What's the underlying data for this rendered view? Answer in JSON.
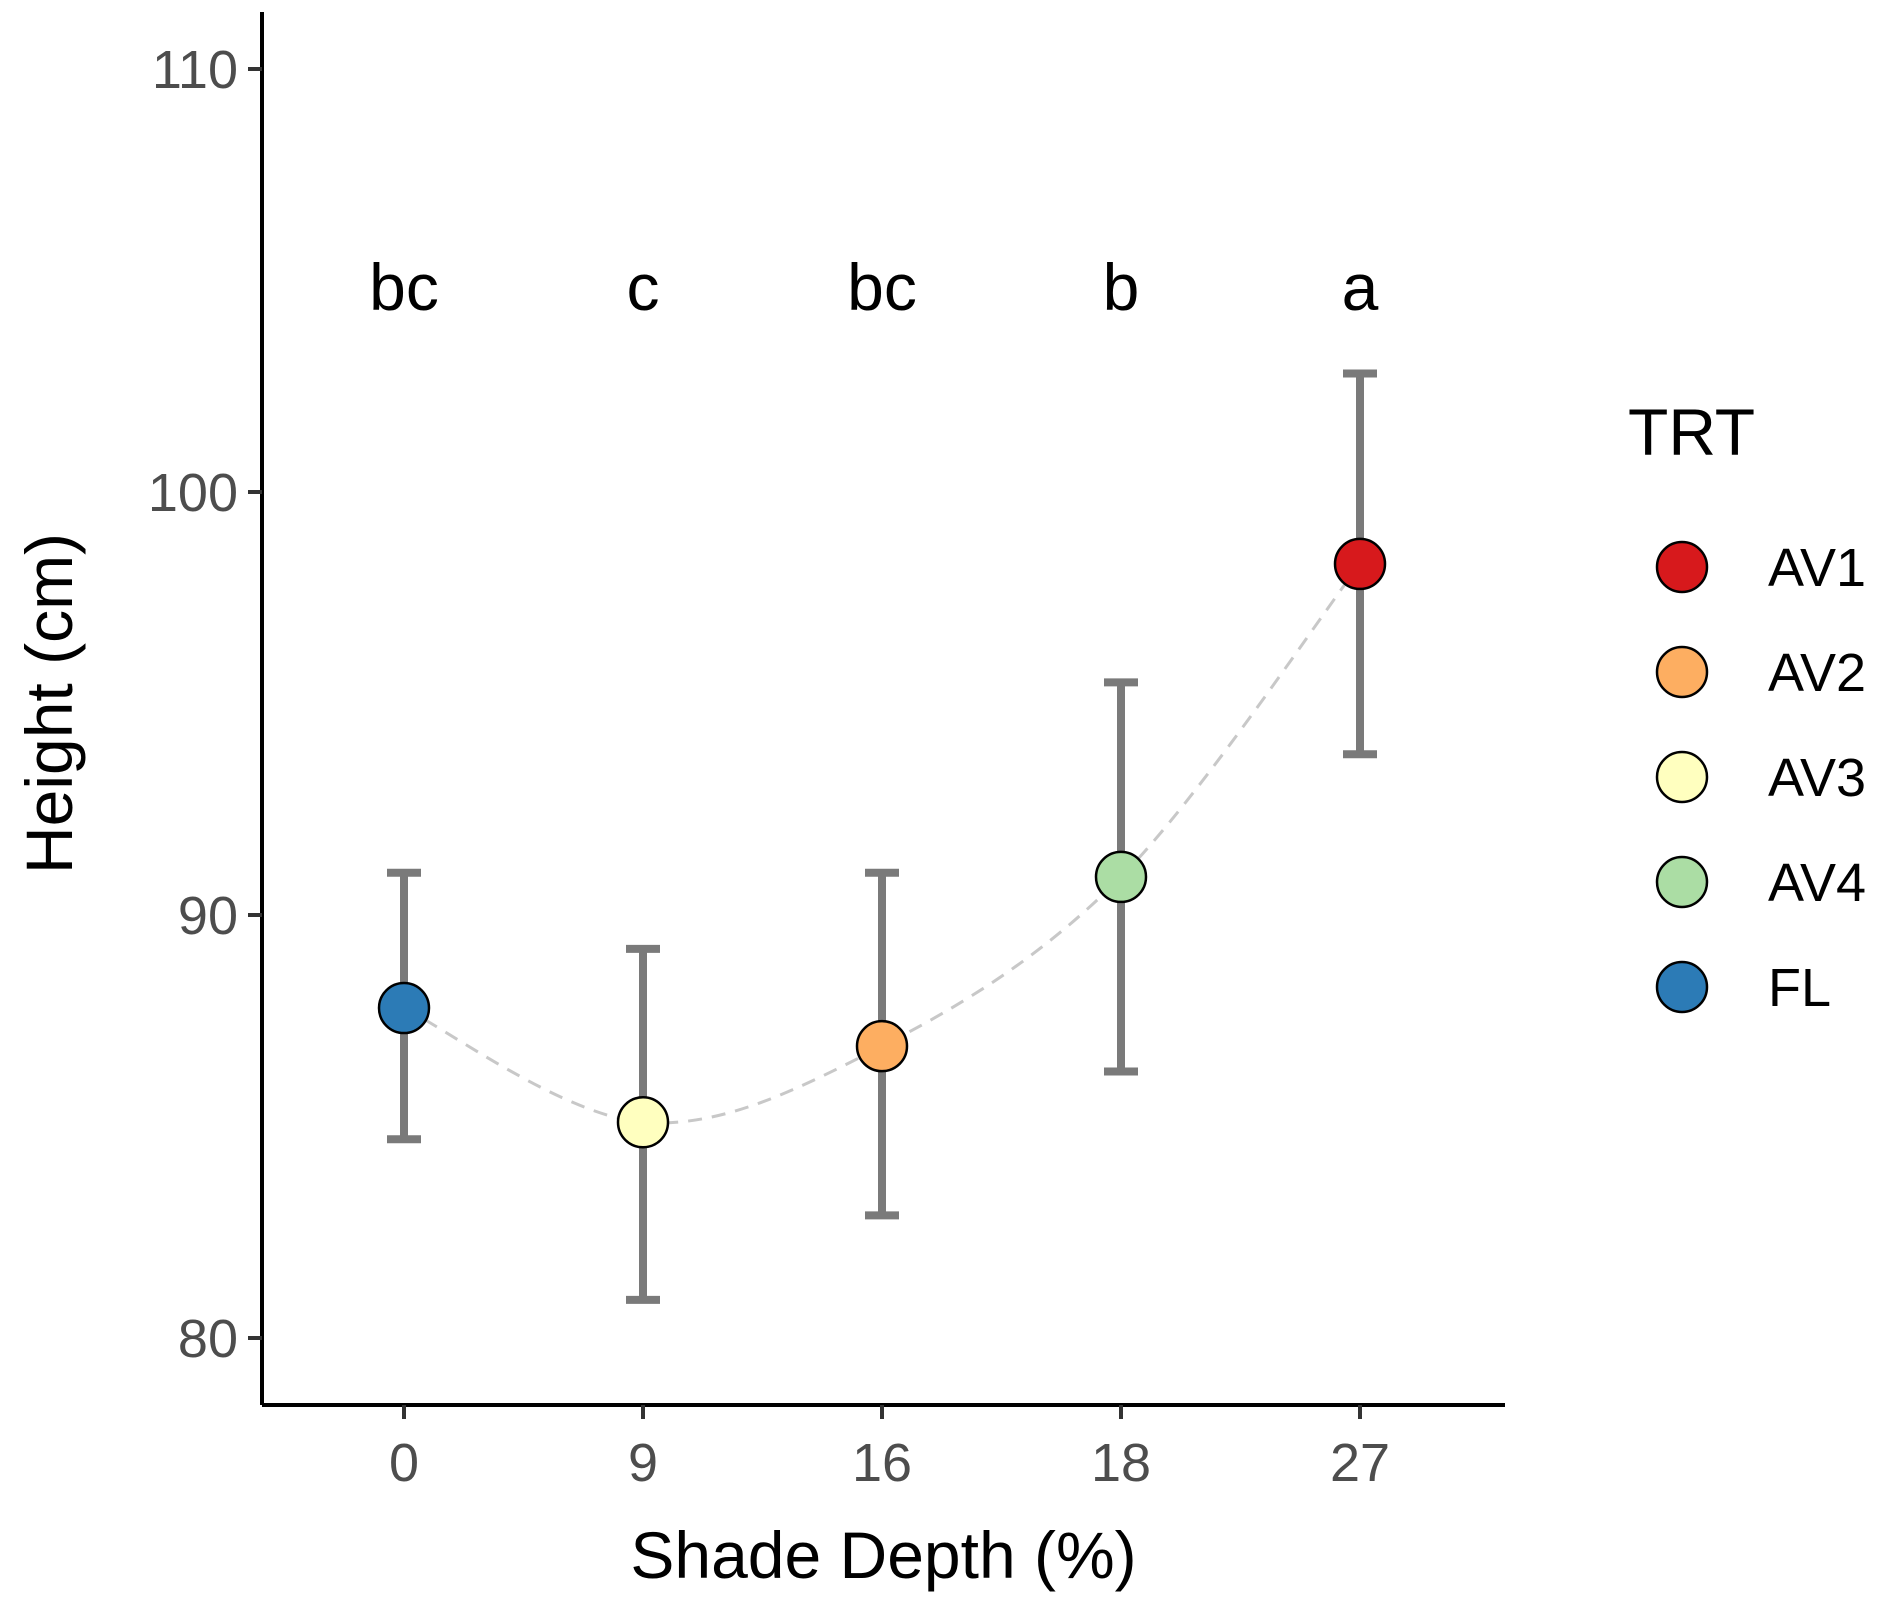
{
  "chart_data": {
    "type": "scatter",
    "title": "",
    "xlabel": "Shade Depth (%)",
    "ylabel": "Height (cm)",
    "x_categories": [
      "0",
      "9",
      "16",
      "18",
      "27"
    ],
    "ylim": [
      78.5,
      111.5
    ],
    "y_ticks": [
      80,
      90,
      100,
      110
    ],
    "y_tick_labels": [
      "80",
      "90",
      "100",
      "110"
    ],
    "grid": false,
    "trend_line": "dashed",
    "points": [
      {
        "x": "0",
        "group": "FL",
        "y": 87.8,
        "lower": 84.7,
        "upper": 91.0,
        "letter": "bc",
        "color": "#2c7bb6"
      },
      {
        "x": "9",
        "group": "AV3",
        "y": 85.1,
        "lower": 80.9,
        "upper": 89.2,
        "letter": "c",
        "color": "#ffffbf"
      },
      {
        "x": "16",
        "group": "AV2",
        "y": 86.9,
        "lower": 82.9,
        "upper": 91.0,
        "letter": "bc",
        "color": "#fdae61"
      },
      {
        "x": "18",
        "group": "AV4",
        "y": 90.9,
        "lower": 86.3,
        "upper": 95.5,
        "letter": "b",
        "color": "#abdda4"
      },
      {
        "x": "27",
        "group": "AV1",
        "y": 98.3,
        "lower": 93.8,
        "upper": 102.8,
        "letter": "a",
        "color": "#d7191c"
      }
    ],
    "legend": {
      "title": "TRT",
      "position": "right",
      "entries": [
        {
          "label": "AV1",
          "color": "#d7191c"
        },
        {
          "label": "AV2",
          "color": "#fdae61"
        },
        {
          "label": "AV3",
          "color": "#ffffbf"
        },
        {
          "label": "AV4",
          "color": "#abdda4"
        },
        {
          "label": "FL",
          "color": "#2c7bb6"
        }
      ]
    },
    "colors": {
      "errorbar": "#7a7a7a",
      "trend": "#c8c8c8",
      "axis": "#000000"
    }
  }
}
